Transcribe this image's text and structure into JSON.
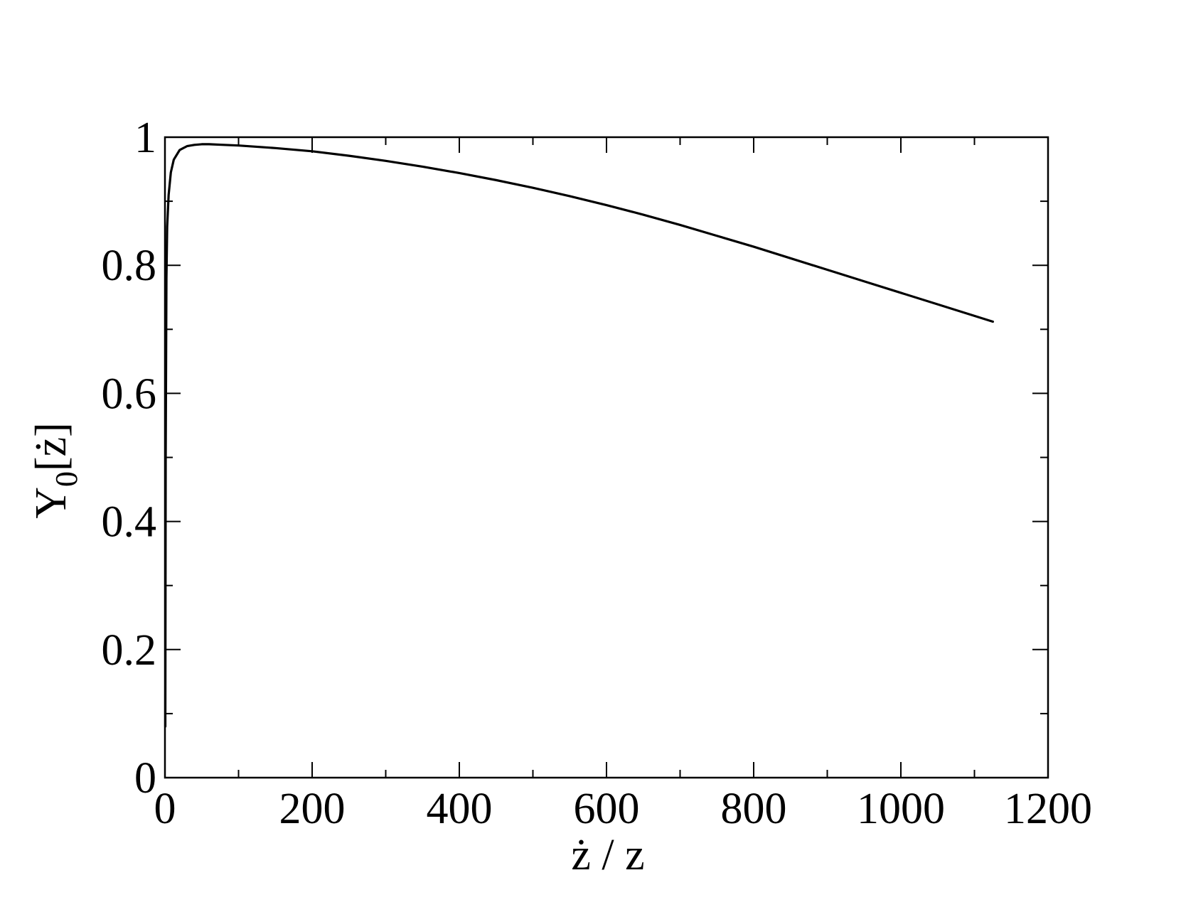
{
  "chart_data": {
    "type": "line",
    "title": "",
    "xlabel": "ż / z",
    "ylabel": {
      "main": "Y",
      "subscript": "0",
      "argument": "[ż]"
    },
    "xlim": [
      0,
      1200
    ],
    "ylim": [
      0,
      1
    ],
    "x_ticks": [
      {
        "value": 0,
        "label": "0"
      },
      {
        "value": 200,
        "label": "200"
      },
      {
        "value": 400,
        "label": "400"
      },
      {
        "value": 600,
        "label": "600"
      },
      {
        "value": 800,
        "label": "800"
      },
      {
        "value": 1000,
        "label": "1000"
      },
      {
        "value": 1200,
        "label": "1200"
      }
    ],
    "x_minor_ticks": [
      100,
      300,
      500,
      700,
      900,
      1100
    ],
    "y_ticks": [
      {
        "value": 0,
        "label": "0"
      },
      {
        "value": 0.2,
        "label": "0.2"
      },
      {
        "value": 0.4,
        "label": "0.4"
      },
      {
        "value": 0.6,
        "label": "0.6"
      },
      {
        "value": 0.8,
        "label": "0.8"
      },
      {
        "value": 1,
        "label": "1"
      }
    ],
    "y_minor_ticks": [
      0.1,
      0.3,
      0.5,
      0.7,
      0.9
    ],
    "grid": false,
    "legend": "none",
    "line_color": "#000000",
    "series": [
      {
        "x": [
          0.5,
          1,
          2,
          3,
          5,
          8,
          12,
          20,
          30,
          40,
          50,
          60,
          80,
          100,
          150,
          200,
          250,
          300,
          350,
          400,
          450,
          500,
          550,
          600,
          650,
          700,
          750,
          800,
          850,
          900,
          950,
          1000,
          1050,
          1100,
          1125
        ],
        "y": [
          0.08,
          0.5,
          0.78,
          0.86,
          0.91,
          0.945,
          0.965,
          0.98,
          0.986,
          0.988,
          0.989,
          0.989,
          0.988,
          0.987,
          0.983,
          0.978,
          0.971,
          0.963,
          0.954,
          0.944,
          0.933,
          0.921,
          0.908,
          0.894,
          0.879,
          0.863,
          0.846,
          0.829,
          0.811,
          0.793,
          0.775,
          0.757,
          0.739,
          0.721,
          0.712
        ]
      }
    ]
  }
}
